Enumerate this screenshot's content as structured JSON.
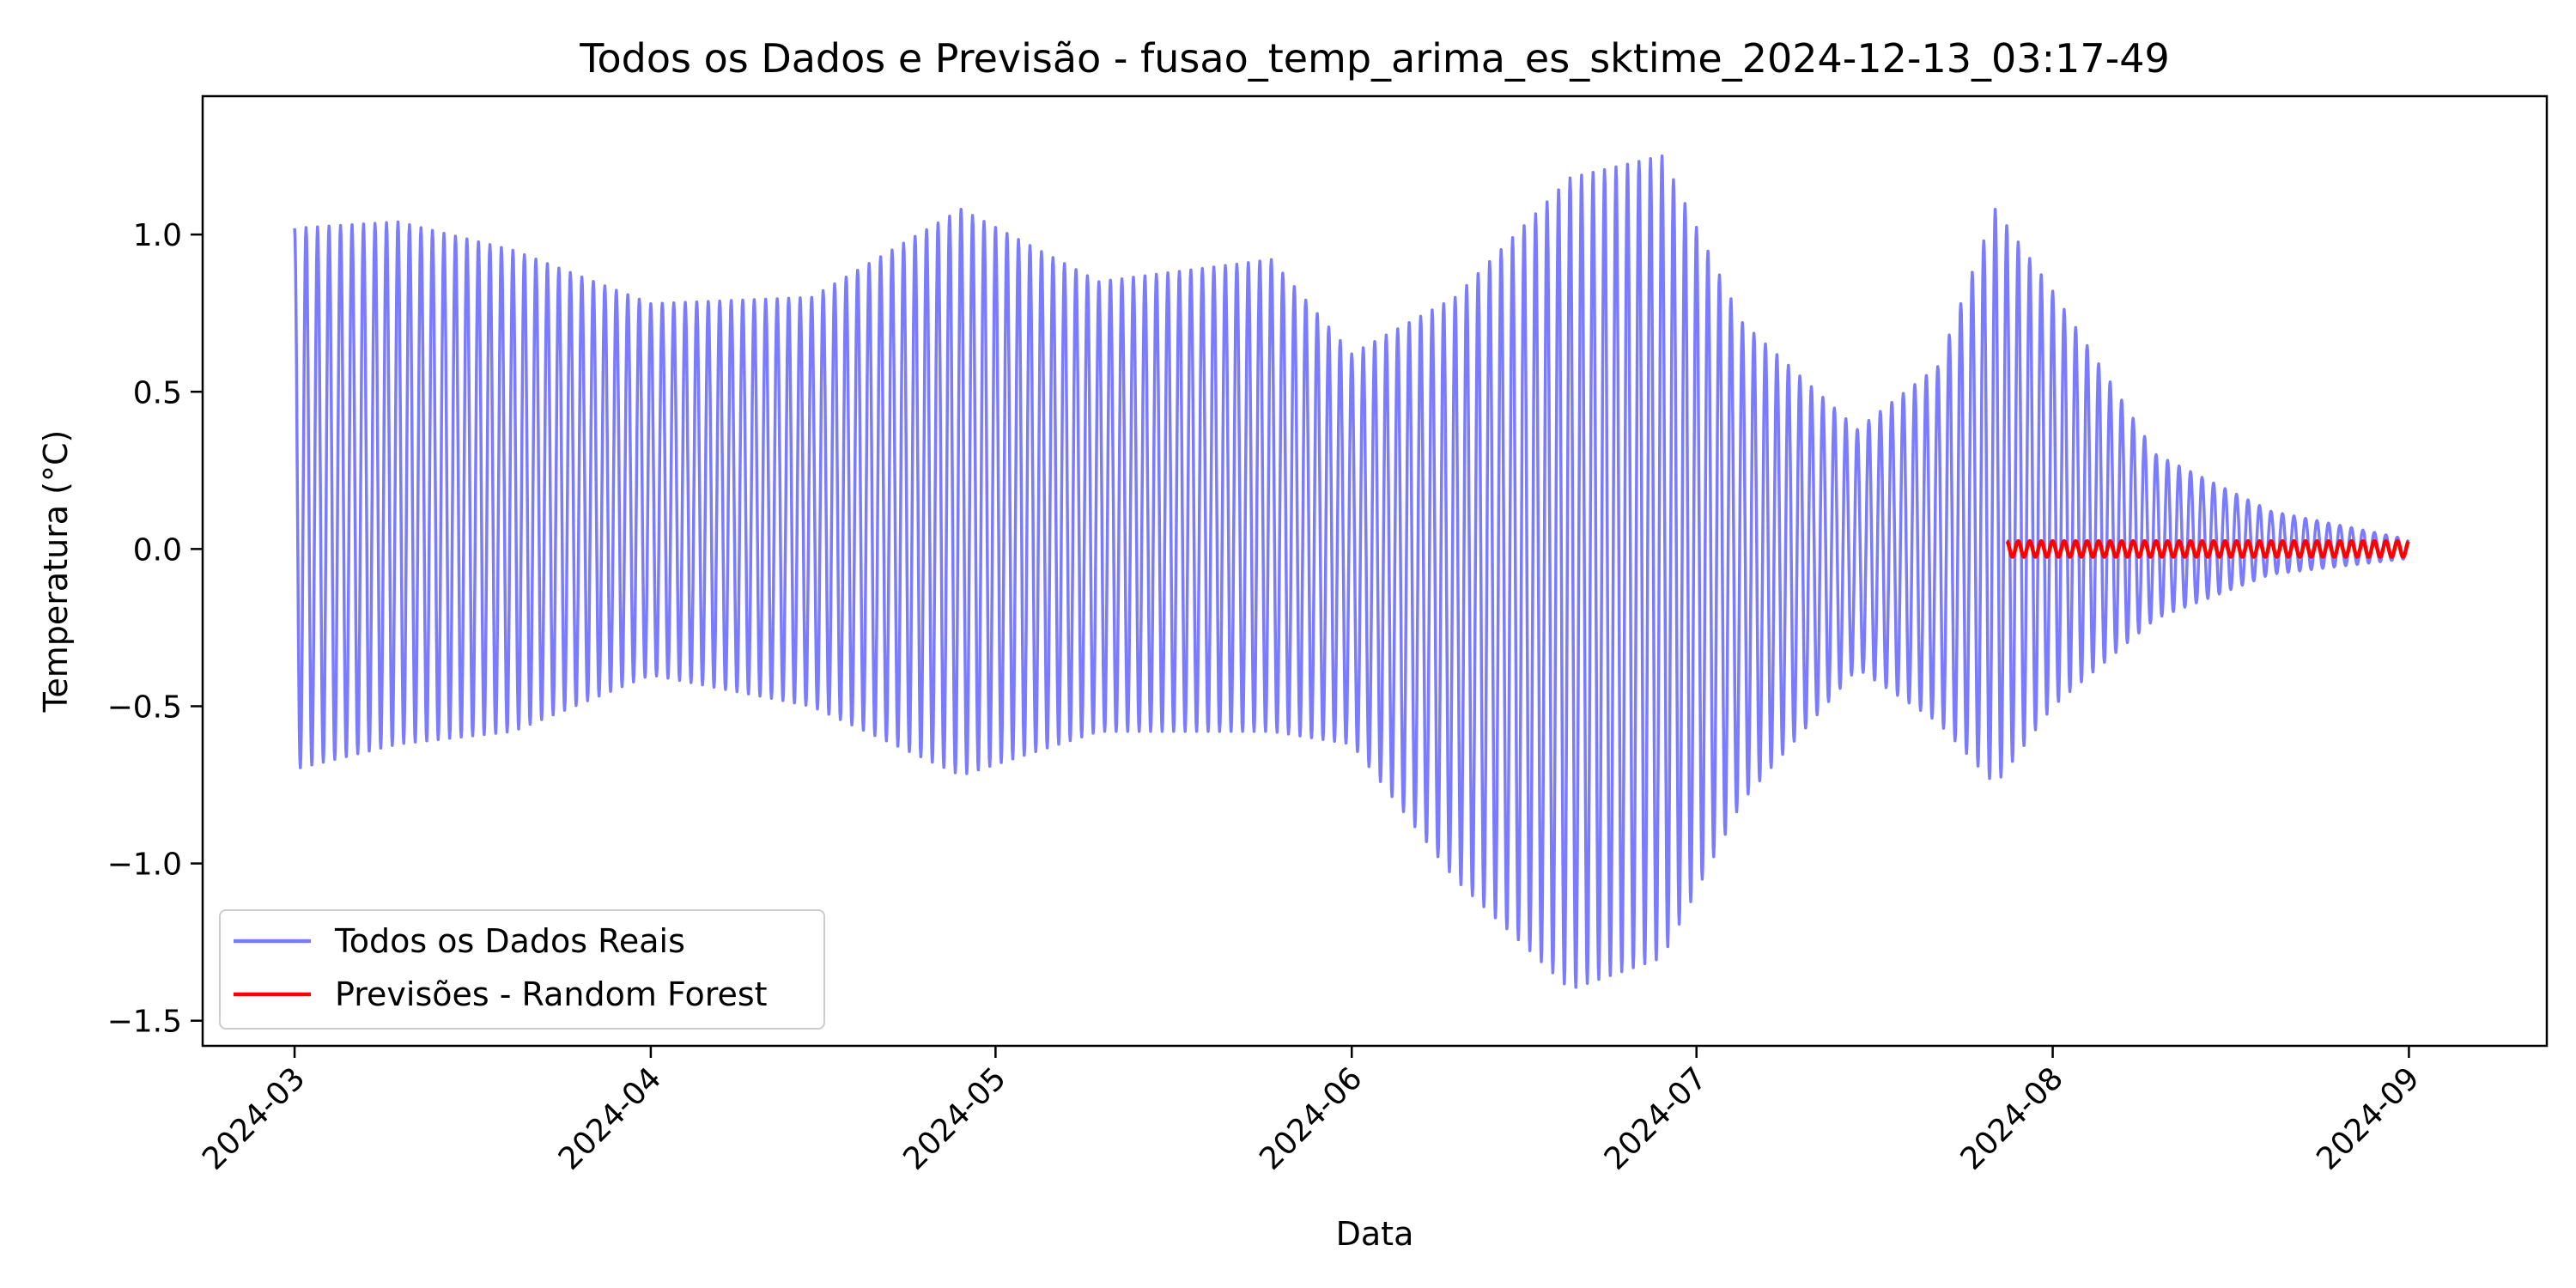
{
  "chart_data": {
    "type": "line",
    "title": "Todos os Dados e Previsão - fusao_temp_arima_es_sktime_2024-12-13_03:17-49",
    "xlabel": "Data",
    "ylabel": "Temperatura (°C)",
    "xlim": [
      "2024-02-22",
      "2024-09-13"
    ],
    "ylim": [
      -1.58,
      1.44
    ],
    "x_ticks": [
      "2024-03",
      "2024-04",
      "2024-05",
      "2024-06",
      "2024-07",
      "2024-08",
      "2024-09"
    ],
    "x_tick_dates": [
      "2024-03-01",
      "2024-04-01",
      "2024-05-01",
      "2024-06-01",
      "2024-07-01",
      "2024-08-01",
      "2024-09-01"
    ],
    "y_ticks": [
      1.0,
      0.5,
      0.0,
      -0.5,
      -1.0,
      -1.5
    ],
    "y_tick_labels": [
      "1.0",
      "0.5",
      "0.0",
      "−0.5",
      "−1.0",
      "−1.5"
    ],
    "grid": false,
    "legend_position": "bottom-left",
    "series": [
      {
        "name": "Todos os Dados Reais",
        "color": "#7b7bff",
        "start": "2024-03-01",
        "end": "2024-09-01",
        "oscillation_period_days": 1,
        "envelope": {
          "dates": [
            "2024-03-01",
            "2024-03-10",
            "2024-03-20",
            "2024-04-01",
            "2024-04-15",
            "2024-04-28",
            "2024-05-10",
            "2024-05-25",
            "2024-06-01",
            "2024-06-10",
            "2024-06-20",
            "2024-06-28",
            "2024-07-05",
            "2024-07-15",
            "2024-07-22",
            "2024-07-27",
            "2024-08-01",
            "2024-08-10",
            "2024-08-20",
            "2024-09-01"
          ],
          "upper": [
            1.02,
            1.04,
            0.95,
            0.78,
            0.8,
            1.08,
            0.85,
            0.92,
            0.62,
            0.8,
            1.18,
            1.25,
            0.72,
            0.38,
            0.58,
            1.08,
            0.82,
            0.3,
            0.12,
            0.03
          ],
          "lower": [
            -0.7,
            -0.62,
            -0.58,
            -0.4,
            -0.5,
            -0.72,
            -0.58,
            -0.58,
            -0.62,
            -1.05,
            -1.4,
            -1.3,
            -0.8,
            -0.38,
            -0.55,
            -0.75,
            -0.5,
            -0.22,
            -0.08,
            -0.03
          ]
        }
      },
      {
        "name": "Previsões - Random Forest",
        "color": "#ff0000",
        "start": "2024-07-28",
        "end": "2024-09-01",
        "center": 0.0,
        "amplitude": 0.025
      }
    ]
  }
}
